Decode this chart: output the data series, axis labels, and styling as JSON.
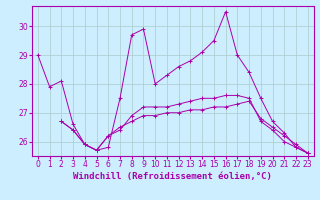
{
  "xlabel": "Windchill (Refroidissement éolien,°C)",
  "bg_color": "#cceeff",
  "grid_color": "#aacccc",
  "line_color": "#aa00aa",
  "x": [
    0,
    1,
    2,
    3,
    4,
    5,
    6,
    7,
    8,
    9,
    10,
    11,
    12,
    13,
    14,
    15,
    16,
    17,
    18,
    19,
    20,
    21,
    22,
    23
  ],
  "line1": [
    29.0,
    27.9,
    28.1,
    26.6,
    25.9,
    25.7,
    25.8,
    27.5,
    29.7,
    29.9,
    28.0,
    28.3,
    28.6,
    28.8,
    29.1,
    29.5,
    30.5,
    29.0,
    28.4,
    27.5,
    26.7,
    26.3,
    25.8,
    25.6
  ],
  "line2": [
    null,
    null,
    26.7,
    26.4,
    25.9,
    25.7,
    26.2,
    26.4,
    26.9,
    27.2,
    27.2,
    27.2,
    27.3,
    27.4,
    27.5,
    27.5,
    27.6,
    27.6,
    27.5,
    26.7,
    26.4,
    26.0,
    25.8,
    25.6
  ],
  "line3": [
    null,
    null,
    26.7,
    26.4,
    25.9,
    25.7,
    26.2,
    26.5,
    26.7,
    26.9,
    26.9,
    27.0,
    27.0,
    27.1,
    27.1,
    27.2,
    27.2,
    27.3,
    27.4,
    26.8,
    26.5,
    26.2,
    25.9,
    25.6
  ],
  "ylim": [
    25.5,
    30.7
  ],
  "xlim": [
    -0.5,
    23.5
  ],
  "yticks": [
    26,
    27,
    28,
    29,
    30
  ],
  "xticks": [
    0,
    1,
    2,
    3,
    4,
    5,
    6,
    7,
    8,
    9,
    10,
    11,
    12,
    13,
    14,
    15,
    16,
    17,
    18,
    19,
    20,
    21,
    22,
    23
  ],
  "tick_fontsize": 5.5,
  "xlabel_fontsize": 6.5
}
